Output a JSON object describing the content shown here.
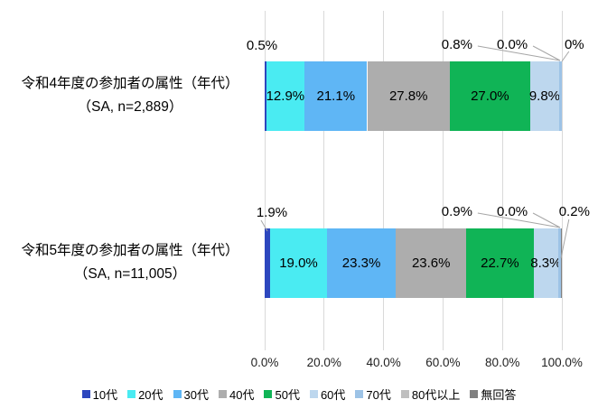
{
  "colors": {
    "background": "#FFFFFF",
    "gridline": "#D9D9D9",
    "leader_line": "#A6A6A6",
    "label_text": "#000000"
  },
  "chart_data": {
    "type": "bar",
    "orientation": "horizontal",
    "stacked": true,
    "title": "",
    "x_axis": {
      "ticks": [
        "0.0%",
        "20.0%",
        "40.0%",
        "60.0%",
        "80.0%",
        "100.0%"
      ],
      "range": [
        0,
        100
      ],
      "grid": true
    },
    "legend": {
      "position": "bottom",
      "entries": [
        "10代",
        "20代",
        "30代",
        "40代",
        "50代",
        "60代",
        "70代",
        "80代以上",
        "無回答"
      ]
    },
    "series": [
      {
        "name": "10代",
        "color": "#2D47BE",
        "values": [
          0.5,
          1.9
        ]
      },
      {
        "name": "20代",
        "color": "#4AEBF2",
        "values": [
          12.9,
          19.0
        ]
      },
      {
        "name": "30代",
        "color": "#5FB6F5",
        "values": [
          21.1,
          23.3
        ]
      },
      {
        "name": "40代",
        "color": "#ADADAD",
        "values": [
          27.8,
          23.6
        ]
      },
      {
        "name": "50代",
        "color": "#10B456",
        "values": [
          27.0,
          22.7
        ]
      },
      {
        "name": "60代",
        "color": "#BDD7EE",
        "values": [
          9.8,
          8.3
        ]
      },
      {
        "name": "70代",
        "color": "#9DC3E6",
        "values": [
          0.8,
          0.9
        ]
      },
      {
        "name": "80代以上",
        "color": "#BFBFBF",
        "values": [
          0.0,
          0.0
        ]
      },
      {
        "name": "無回答",
        "color": "#808080",
        "values": [
          0.0,
          0.2
        ]
      }
    ],
    "bars": [
      {
        "category_lines": [
          "令和4年度の参加者の属性（年代）",
          "（SA, n=2,889）"
        ],
        "inside_labels": [
          null,
          "12.9%",
          "21.1%",
          "27.8%",
          "27.0%",
          "9.8%",
          null,
          null,
          null
        ],
        "start_callout": {
          "text": "0.5%",
          "series": "10代",
          "leader": false
        },
        "end_callouts": [
          {
            "text": "0.8%",
            "series": "70代"
          },
          {
            "text": "0.0%",
            "series": "80代以上"
          },
          {
            "text": "0%",
            "series": "無回答"
          }
        ]
      },
      {
        "category_lines": [
          "令和5年度の参加者の属性（年代）",
          "（SA, n=11,005）"
        ],
        "inside_labels": [
          null,
          "19.0%",
          "23.3%",
          "23.6%",
          "22.7%",
          "8.3%",
          null,
          null,
          null
        ],
        "start_callout": {
          "text": "1.9%",
          "series": "10代",
          "leader": true
        },
        "end_callouts": [
          {
            "text": "0.9%",
            "series": "70代"
          },
          {
            "text": "0.0%",
            "series": "80代以上"
          },
          {
            "text": "0.2%",
            "series": "無回答"
          }
        ]
      }
    ]
  }
}
